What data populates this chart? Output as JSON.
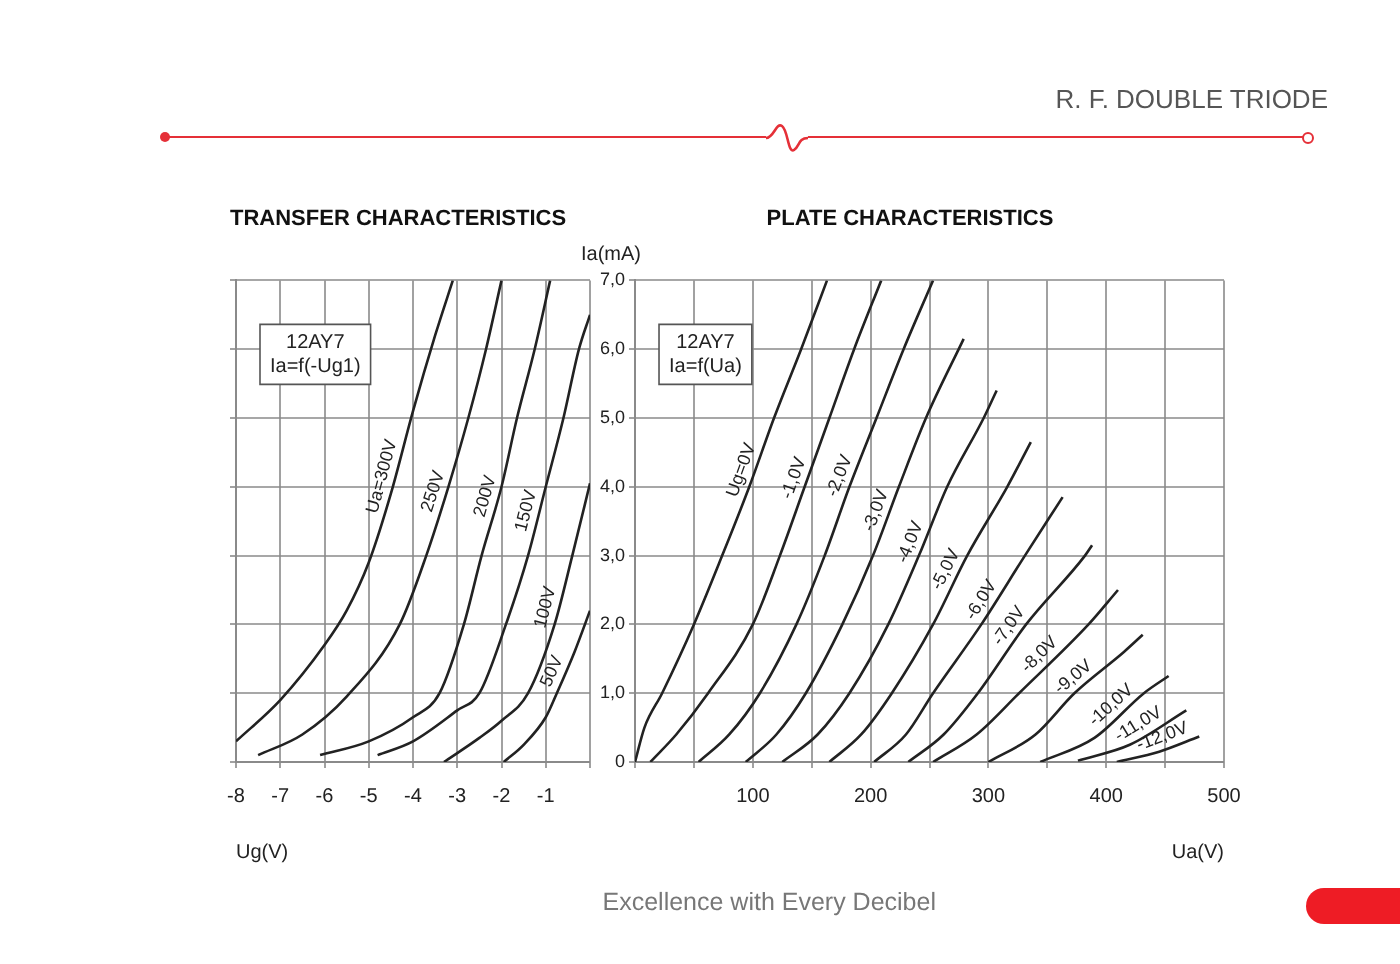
{
  "chart_data": [
    {
      "type": "other",
      "title": "R. F. DOUBLE TRIODE",
      "annotations": [
        "Excellence with Every Decibel"
      ]
    },
    {
      "type": "line",
      "title": "TRANSFER CHARACTERISTICS",
      "xlabel": "Ug(V)",
      "annotations": [
        "12AY7",
        "Ia=f(-Ug1)"
      ],
      "xlim": [
        -8,
        0
      ],
      "xticks": [
        -8,
        -7,
        -6,
        -5,
        -4,
        -3,
        -2,
        -1,
        {
          "value": 0,
          "label": null
        }
      ],
      "ylim": [
        0,
        7
      ],
      "yticks": [
        0,
        1,
        2,
        3,
        4,
        5,
        6,
        7
      ],
      "tick_labels": "x",
      "grid": true,
      "legend": false,
      "marker": "none",
      "series": [
        {
          "name": "Ua=300V",
          "color": "#222222",
          "x": [
            -8,
            -7,
            -6,
            -5.5,
            -5,
            -4.5,
            -4,
            -3.5,
            -3.1
          ],
          "values": [
            0.3,
            0.9,
            1.7,
            2.2,
            2.9,
            3.9,
            5.1,
            6.2,
            7.0
          ]
        },
        {
          "name": "250V",
          "color": "#222222",
          "x": [
            -7.5,
            -6.5,
            -5.5,
            -4.3,
            -3.7,
            -3.2,
            -2.75,
            -2.35,
            -2.0
          ],
          "values": [
            0.1,
            0.4,
            0.95,
            2.0,
            3.0,
            4.0,
            5.0,
            6.0,
            7.0
          ]
        },
        {
          "name": "200V",
          "color": "#222222",
          "x": [
            -6.1,
            -5,
            -4,
            -3.4,
            -2.85,
            -2.45,
            -2,
            -1.65,
            -1.25,
            -0.9
          ],
          "values": [
            0.1,
            0.3,
            0.65,
            1.0,
            2.0,
            3.0,
            4.0,
            5.0,
            6.0,
            7.0
          ]
        },
        {
          "name": "150V",
          "color": "#222222",
          "x": [
            -4.8,
            -4,
            -3,
            -2.5,
            -1.9,
            -1.4,
            -1,
            -0.6,
            -0.25,
            0
          ],
          "values": [
            0.1,
            0.3,
            0.75,
            1.0,
            2.0,
            3.0,
            4.0,
            5.0,
            6.0,
            6.5
          ]
        },
        {
          "name": "100V",
          "color": "#222222",
          "x": [
            -3.3,
            -2.5,
            -2,
            -1.4,
            -0.8,
            -0.4,
            0
          ],
          "values": [
            0,
            0.35,
            0.6,
            1.0,
            2.0,
            3.0,
            4.05
          ]
        },
        {
          "name": "50V",
          "color": "#222222",
          "x": [
            -1.95,
            -1.5,
            -1,
            -0.75,
            -0.35,
            0
          ],
          "values": [
            0,
            0.25,
            0.65,
            1.0,
            1.6,
            2.2
          ]
        }
      ]
    },
    {
      "type": "line",
      "title": "PLATE CHARACTERISTICS",
      "xlabel": "Ua(V)",
      "ylabel": "Ia(mA)",
      "annotations": [
        "12AY7",
        "Ia=f(Ua)"
      ],
      "xlim": [
        0,
        500
      ],
      "xticks": [
        {
          "value": 0,
          "label": null
        },
        {
          "value": 50,
          "label": null
        },
        100,
        {
          "value": 150,
          "label": null
        },
        200,
        {
          "value": 250,
          "label": null
        },
        300,
        {
          "value": 350,
          "label": null
        },
        400,
        {
          "value": 450,
          "label": null
        },
        500
      ],
      "ylim": [
        0,
        7
      ],
      "yticks": [
        {
          "value": 0,
          "label": "0"
        },
        {
          "value": 1,
          "label": "1,0"
        },
        {
          "value": 2,
          "label": "2,0"
        },
        {
          "value": 3,
          "label": "3,0"
        },
        {
          "value": 4,
          "label": "4,0"
        },
        {
          "value": 5,
          "label": "5,0"
        },
        {
          "value": 6,
          "label": "6,0"
        },
        {
          "value": 7,
          "label": "7,0"
        }
      ],
      "grid": true,
      "legend": false,
      "marker": "none",
      "series": [
        {
          "name": "Ug=0V",
          "color": "#222222",
          "x": [
            0,
            8,
            23,
            50,
            74,
            97,
            118,
            141,
            163
          ],
          "values": [
            0,
            0.5,
            1.0,
            2.0,
            3.0,
            4.0,
            5.0,
            6.0,
            7.0
          ]
        },
        {
          "name": "-1,0V",
          "color": "#222222",
          "x": [
            13,
            35,
            62,
            100,
            123,
            144,
            165,
            186,
            209
          ],
          "values": [
            0,
            0.4,
            1.0,
            2.0,
            3.0,
            4.0,
            5.0,
            6.0,
            7.0
          ]
        },
        {
          "name": "-2,0V",
          "color": "#222222",
          "x": [
            54,
            80,
            106,
            137,
            161,
            182,
            205,
            228,
            253
          ],
          "values": [
            0,
            0.4,
            1.0,
            2.0,
            3.0,
            4.0,
            5.0,
            6.0,
            7.0
          ]
        },
        {
          "name": "-3,0V",
          "color": "#222222",
          "x": [
            94,
            120,
            145,
            176,
            202,
            224,
            247,
            279
          ],
          "values": [
            0,
            0.4,
            1.0,
            2.0,
            3.0,
            4.0,
            5.0,
            6.15
          ]
        },
        {
          "name": "-4,0V",
          "color": "#222222",
          "x": [
            125,
            155,
            182,
            215,
            241,
            265,
            296,
            307
          ],
          "values": [
            0,
            0.4,
            1.0,
            2.0,
            3.0,
            4.0,
            5.0,
            5.4
          ]
        },
        {
          "name": "-5,0V",
          "color": "#222222",
          "x": [
            165,
            192,
            218,
            253,
            282,
            316,
            336
          ],
          "values": [
            0,
            0.4,
            1.0,
            2.0,
            3.0,
            4.0,
            4.65
          ]
        },
        {
          "name": "-6,0V",
          "color": "#222222",
          "x": [
            203,
            230,
            253,
            294,
            331,
            363
          ],
          "values": [
            0,
            0.4,
            1.0,
            2.0,
            3.0,
            3.85
          ]
        },
        {
          "name": "-7,0V",
          "color": "#222222",
          "x": [
            232,
            262,
            291,
            332,
            382,
            388
          ],
          "values": [
            0,
            0.4,
            1.0,
            2.0,
            3.0,
            3.15
          ]
        },
        {
          "name": "-8,0V",
          "color": "#222222",
          "x": [
            253,
            290,
            326,
            385,
            410
          ],
          "values": [
            0,
            0.4,
            1.0,
            2.0,
            2.5
          ]
        },
        {
          "name": "-9,0V",
          "color": "#222222",
          "x": [
            300,
            340,
            373,
            415,
            431
          ],
          "values": [
            0,
            0.4,
            1.0,
            1.6,
            1.85
          ]
        },
        {
          "name": "-10,0V",
          "color": "#222222",
          "x": [
            344,
            390,
            432,
            453
          ],
          "values": [
            0,
            0.35,
            1.0,
            1.25
          ]
        },
        {
          "name": "-11,0V",
          "color": "#222222",
          "x": [
            376,
            420,
            468
          ],
          "values": [
            0.02,
            0.25,
            0.75
          ]
        },
        {
          "name": "-12,0V",
          "color": "#222222",
          "x": [
            409,
            445,
            479
          ],
          "values": [
            0,
            0.15,
            0.37
          ]
        }
      ]
    }
  ]
}
